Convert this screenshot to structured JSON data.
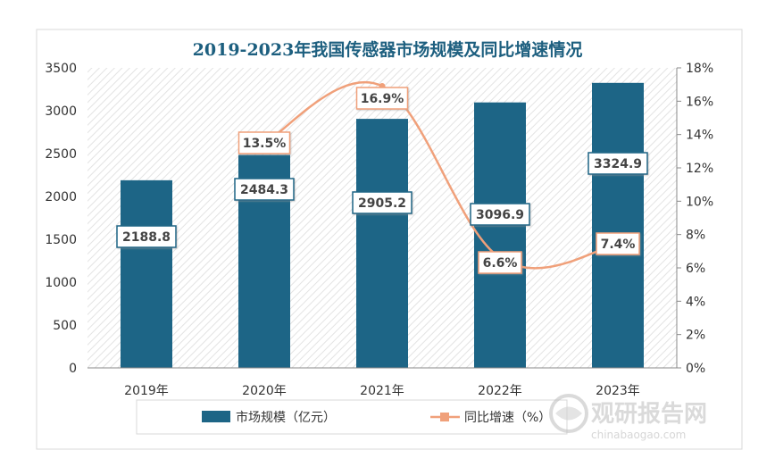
{
  "chart_data": {
    "type": "bar",
    "title": "2019-2023年我国传感器市场规模及同比增速情况",
    "categories": [
      "2019年",
      "2020年",
      "2021年",
      "2022年",
      "2023年"
    ],
    "series": [
      {
        "name": "市场规模（亿元）",
        "type": "bar",
        "axis": "left",
        "values": [
          2188.8,
          2484.3,
          2905.2,
          3096.9,
          3324.9
        ],
        "labels": [
          "2188.8",
          "2484.3",
          "2905.2",
          "3096.9",
          "3324.9"
        ],
        "color": "#1d6586"
      },
      {
        "name": "同比增速（%）",
        "type": "line",
        "axis": "right",
        "values": [
          null,
          13.5,
          16.9,
          6.6,
          7.4
        ],
        "labels": [
          "",
          "13.5%",
          "16.9%",
          "6.6%",
          "7.4%"
        ],
        "color": "#f0a07a"
      }
    ],
    "y_left": {
      "min": 0,
      "max": 3500,
      "ticks": [
        "0",
        "500",
        "1000",
        "1500",
        "2000",
        "2500",
        "3000",
        "3500"
      ]
    },
    "y_right": {
      "min": 0,
      "max": 18,
      "ticks": [
        "0%",
        "2%",
        "4%",
        "6%",
        "8%",
        "10%",
        "12%",
        "14%",
        "16%",
        "18%"
      ]
    },
    "legend_position": "bottom",
    "grid": false
  },
  "watermark": {
    "brand": "观研报告网",
    "url": "chinabaogao.com"
  },
  "colors": {
    "title": "#1d5f7f",
    "bar": "#1d6586",
    "line": "#f0a07a",
    "label_border_bar": "#1d6586",
    "label_border_line": "#f0a07a",
    "axis_text": "#333333"
  }
}
